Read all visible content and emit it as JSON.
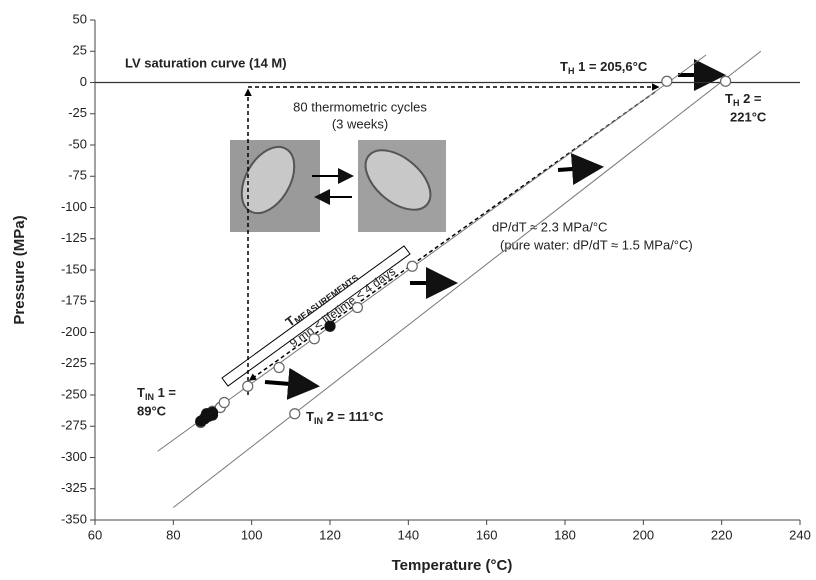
{
  "chart_data": {
    "type": "scatter",
    "x_label": "Temperature (°C)",
    "y_label": "Pressure (MPa)",
    "xlim": [
      60,
      240
    ],
    "xticks": [
      60,
      80,
      100,
      120,
      140,
      160,
      180,
      200,
      220,
      240
    ],
    "ylim": [
      -350,
      50
    ],
    "yticks": [
      -350,
      -325,
      -300,
      -275,
      -250,
      -225,
      -200,
      -175,
      -150,
      -125,
      -100,
      -75,
      -50,
      -25,
      0,
      25,
      50
    ],
    "grid": false,
    "series": [
      {
        "name": "open",
        "color": "#666666",
        "x": [
          87,
          88,
          89,
          90,
          92,
          93,
          99,
          107,
          116,
          127,
          141,
          206,
          111,
          221
        ],
        "values": [
          -272,
          -268,
          -265,
          -263,
          -260,
          -256,
          -243,
          -228,
          -205,
          -180,
          -147,
          1,
          -265,
          1
        ]
      },
      {
        "name": "filled",
        "color": "#111111",
        "x": [
          87,
          88,
          88.5,
          89,
          90,
          90,
          120
        ],
        "values": [
          -271,
          -269,
          -265,
          -267,
          -266,
          -264,
          -195
        ]
      }
    ],
    "fit_lines": [
      {
        "color": "#777777",
        "x": [
          76,
          216
        ],
        "values": [
          -295,
          22
        ]
      },
      {
        "color": "#777777",
        "x": [
          80,
          230
        ],
        "values": [
          -340,
          25
        ]
      }
    ],
    "annotations": {
      "lv_curve": "LV saturation curve (14 M)",
      "cycles": "80 thermometric cycles",
      "weeks": "(3 weeks)",
      "th1": {
        "main": "T",
        "sub": "H",
        "rest": " 1 = 205,6°C"
      },
      "th2": {
        "main": "T",
        "sub": "H",
        "rest": " 2 ="
      },
      "th2_value": "221°C",
      "slope": "dP/dT ≈  2.3 MPa/°C",
      "pure_water": "(pure water: dP/dT ≈ 1.5 MPa/°C)",
      "tin1": {
        "main": "T",
        "sub": "IN",
        "rest": " 1 ="
      },
      "tin1_value": "89°C",
      "tin2": {
        "main": "T",
        "sub": "IN",
        "rest": " 2 = 111°C"
      },
      "measure": {
        "main": "T",
        "sub": "MEASUREMENTS"
      },
      "lifetime": "9 mn < lifetime < 4 days"
    }
  }
}
